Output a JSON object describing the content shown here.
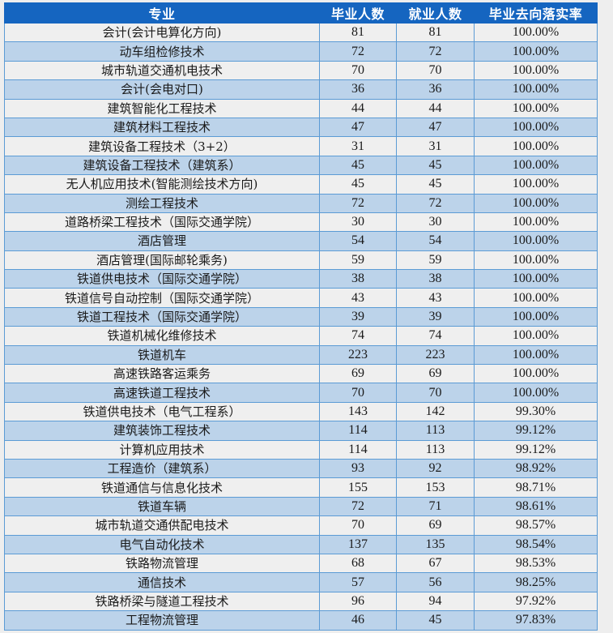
{
  "table": {
    "headers": [
      "专业",
      "毕业人数",
      "就业人数",
      "毕业去向落实率"
    ],
    "rows": [
      {
        "major": "会计(会计电算化方向)",
        "graduates": "81",
        "employed": "81",
        "rate": "100.00%"
      },
      {
        "major": "动车组检修技术",
        "graduates": "72",
        "employed": "72",
        "rate": "100.00%"
      },
      {
        "major": "城市轨道交通机电技术",
        "graduates": "70",
        "employed": "70",
        "rate": "100.00%"
      },
      {
        "major": "会计(会电对口)",
        "graduates": "36",
        "employed": "36",
        "rate": "100.00%"
      },
      {
        "major": "建筑智能化工程技术",
        "graduates": "44",
        "employed": "44",
        "rate": "100.00%"
      },
      {
        "major": "建筑材料工程技术",
        "graduates": "47",
        "employed": "47",
        "rate": "100.00%"
      },
      {
        "major": "建筑设备工程技术（3+2）",
        "graduates": "31",
        "employed": "31",
        "rate": "100.00%"
      },
      {
        "major": "建筑设备工程技术（建筑系）",
        "graduates": "45",
        "employed": "45",
        "rate": "100.00%"
      },
      {
        "major": "无人机应用技术(智能测绘技术方向)",
        "graduates": "45",
        "employed": "45",
        "rate": "100.00%"
      },
      {
        "major": "测绘工程技术",
        "graduates": "72",
        "employed": "72",
        "rate": "100.00%"
      },
      {
        "major": "道路桥梁工程技术（国际交通学院）",
        "graduates": "30",
        "employed": "30",
        "rate": "100.00%"
      },
      {
        "major": "酒店管理",
        "graduates": "54",
        "employed": "54",
        "rate": "100.00%"
      },
      {
        "major": "酒店管理(国际邮轮乘务)",
        "graduates": "59",
        "employed": "59",
        "rate": "100.00%"
      },
      {
        "major": "铁道供电技术（国际交通学院）",
        "graduates": "38",
        "employed": "38",
        "rate": "100.00%"
      },
      {
        "major": "铁道信号自动控制（国际交通学院）",
        "graduates": "43",
        "employed": "43",
        "rate": "100.00%"
      },
      {
        "major": "铁道工程技术（国际交通学院）",
        "graduates": "39",
        "employed": "39",
        "rate": "100.00%"
      },
      {
        "major": "铁道机械化维修技术",
        "graduates": "74",
        "employed": "74",
        "rate": "100.00%"
      },
      {
        "major": "铁道机车",
        "graduates": "223",
        "employed": "223",
        "rate": "100.00%"
      },
      {
        "major": "高速铁路客运乘务",
        "graduates": "69",
        "employed": "69",
        "rate": "100.00%"
      },
      {
        "major": "高速铁道工程技术",
        "graduates": "70",
        "employed": "70",
        "rate": "100.00%"
      },
      {
        "major": "铁道供电技术（电气工程系）",
        "graduates": "143",
        "employed": "142",
        "rate": "99.30%"
      },
      {
        "major": "建筑装饰工程技术",
        "graduates": "114",
        "employed": "113",
        "rate": "99.12%"
      },
      {
        "major": "计算机应用技术",
        "graduates": "114",
        "employed": "113",
        "rate": "99.12%"
      },
      {
        "major": "工程造价（建筑系）",
        "graduates": "93",
        "employed": "92",
        "rate": "98.92%"
      },
      {
        "major": "铁道通信与信息化技术",
        "graduates": "155",
        "employed": "153",
        "rate": "98.71%"
      },
      {
        "major": "铁道车辆",
        "graduates": "72",
        "employed": "71",
        "rate": "98.61%"
      },
      {
        "major": "城市轨道交通供配电技术",
        "graduates": "70",
        "employed": "69",
        "rate": "98.57%"
      },
      {
        "major": "电气自动化技术",
        "graduates": "137",
        "employed": "135",
        "rate": "98.54%"
      },
      {
        "major": "铁路物流管理",
        "graduates": "68",
        "employed": "67",
        "rate": "98.53%"
      },
      {
        "major": "通信技术",
        "graduates": "57",
        "employed": "56",
        "rate": "98.25%"
      },
      {
        "major": "铁路桥梁与隧道工程技术",
        "graduates": "96",
        "employed": "94",
        "rate": "97.92%"
      },
      {
        "major": "工程物流管理",
        "graduates": "46",
        "employed": "45",
        "rate": "97.83%"
      }
    ]
  },
  "colors": {
    "header_bg": "#1565c0",
    "header_text": "#ffffff",
    "row_odd_bg": "#efefef",
    "row_even_bg": "#bcd3ea",
    "grid_line": "#5b9bd5",
    "page_bg": "#eeeeee"
  }
}
